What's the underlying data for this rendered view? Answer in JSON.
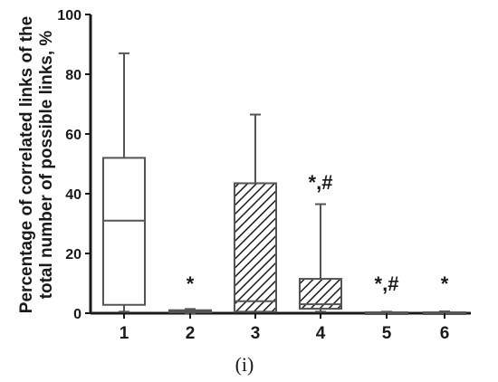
{
  "chart_data": {
    "type": "boxplot",
    "ylabel": "Percentage of correlated links of the total number of possible links, %",
    "ylabel_lines": [
      "Percentage of correlated links of the",
      "total number of possible links, %"
    ],
    "ylim": [
      0,
      100
    ],
    "yticks": [
      0,
      20,
      40,
      60,
      80,
      100
    ],
    "categories": [
      "1",
      "2",
      "3",
      "4",
      "5",
      "6"
    ],
    "boxes": [
      {
        "category": "1",
        "whisker_low": 0.5,
        "q1": 2.8,
        "median": 31,
        "q3": 52,
        "whisker_high": 87,
        "fill": "none"
      },
      {
        "category": "2",
        "whisker_low": 0,
        "q1": 0.3,
        "median": 0.6,
        "q3": 1.0,
        "whisker_high": 1.4,
        "fill": "none"
      },
      {
        "category": "3",
        "whisker_low": 0.5,
        "q1": 0.5,
        "median": 4,
        "q3": 43.5,
        "whisker_high": 66.5,
        "fill": "hatched"
      },
      {
        "category": "4",
        "whisker_low": 0.5,
        "q1": 1.5,
        "median": 3,
        "q3": 11.5,
        "whisker_high": 36.5,
        "fill": "hatched"
      },
      {
        "category": "5",
        "whisker_low": 0,
        "q1": 0.05,
        "median": 0.15,
        "q3": 0.3,
        "whisker_high": 0.5,
        "fill": "none"
      },
      {
        "category": "6",
        "whisker_low": 0,
        "q1": 0.05,
        "median": 0.15,
        "q3": 0.3,
        "whisker_high": 0.6,
        "fill": "none"
      }
    ],
    "annotations": [
      {
        "category": "2",
        "text": "*",
        "value": 10
      },
      {
        "category": "4",
        "text": "*,#",
        "value": 44
      },
      {
        "category": "5",
        "text": "*,#",
        "value": 10
      },
      {
        "category": "6",
        "text": "*",
        "value": 10
      }
    ],
    "panel_label": "(i)",
    "grid": false
  }
}
